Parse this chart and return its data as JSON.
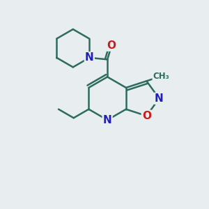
{
  "bg_color": "#e8edf0",
  "bond_color": "#2d6b5e",
  "N_color": "#2020bb",
  "O_color": "#cc1a1a",
  "line_width": 1.8,
  "font_size": 11,
  "xlim": [
    0,
    10
  ],
  "ylim": [
    0,
    10
  ]
}
